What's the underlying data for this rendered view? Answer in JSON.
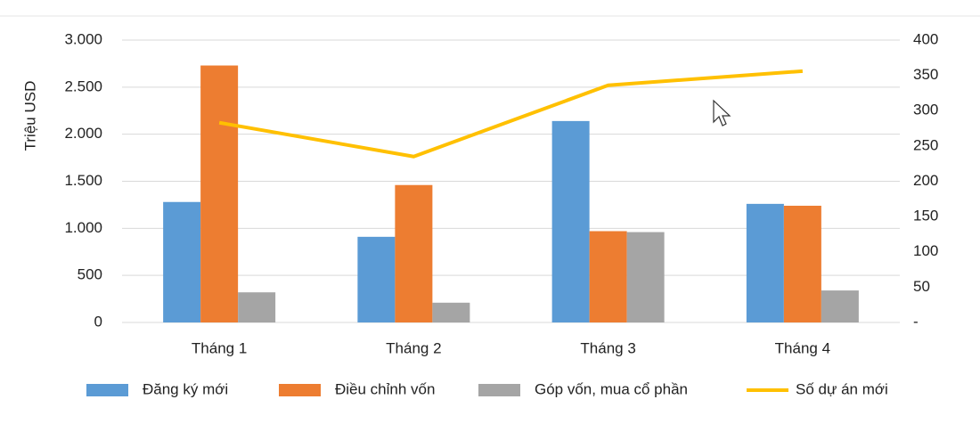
{
  "chart_data": {
    "type": "bar_line",
    "y_label": "Triệu USD",
    "categories": [
      "Tháng 1",
      "Tháng 2",
      "Tháng 3",
      "Tháng 4"
    ],
    "series": [
      {
        "name": "Đăng ký mới",
        "color": "#5b9bd5",
        "type": "bar",
        "values": [
          1280,
          910,
          2140,
          1260
        ]
      },
      {
        "name": "Điều chỉnh vốn",
        "color": "#ed7d31",
        "type": "bar",
        "values": [
          2730,
          1460,
          970,
          1240
        ]
      },
      {
        "name": "Góp vốn, mua cổ phần",
        "color": "#a5a5a5",
        "type": "bar",
        "values": [
          320,
          210,
          960,
          340
        ]
      },
      {
        "name": "Số dự án mới",
        "color": "#ffc000",
        "type": "line",
        "axis": "y2",
        "values": [
          283,
          235,
          336,
          356
        ]
      }
    ],
    "ylim": [
      0,
      3000
    ],
    "yticks": [
      0,
      500,
      {
        "value": 1000,
        "label": "1.000"
      },
      {
        "value": 1500,
        "label": "1.500"
      },
      {
        "value": 2000,
        "label": "2.000"
      },
      {
        "value": 2500,
        "label": "2.500"
      },
      {
        "value": 3000,
        "label": "3.000"
      }
    ],
    "y2lim": [
      0,
      400
    ],
    "y2ticks": [
      {
        "value": 0,
        "label": "-"
      },
      50,
      100,
      150,
      200,
      250,
      300,
      350,
      400
    ],
    "grid": true,
    "legend": "bottom"
  }
}
